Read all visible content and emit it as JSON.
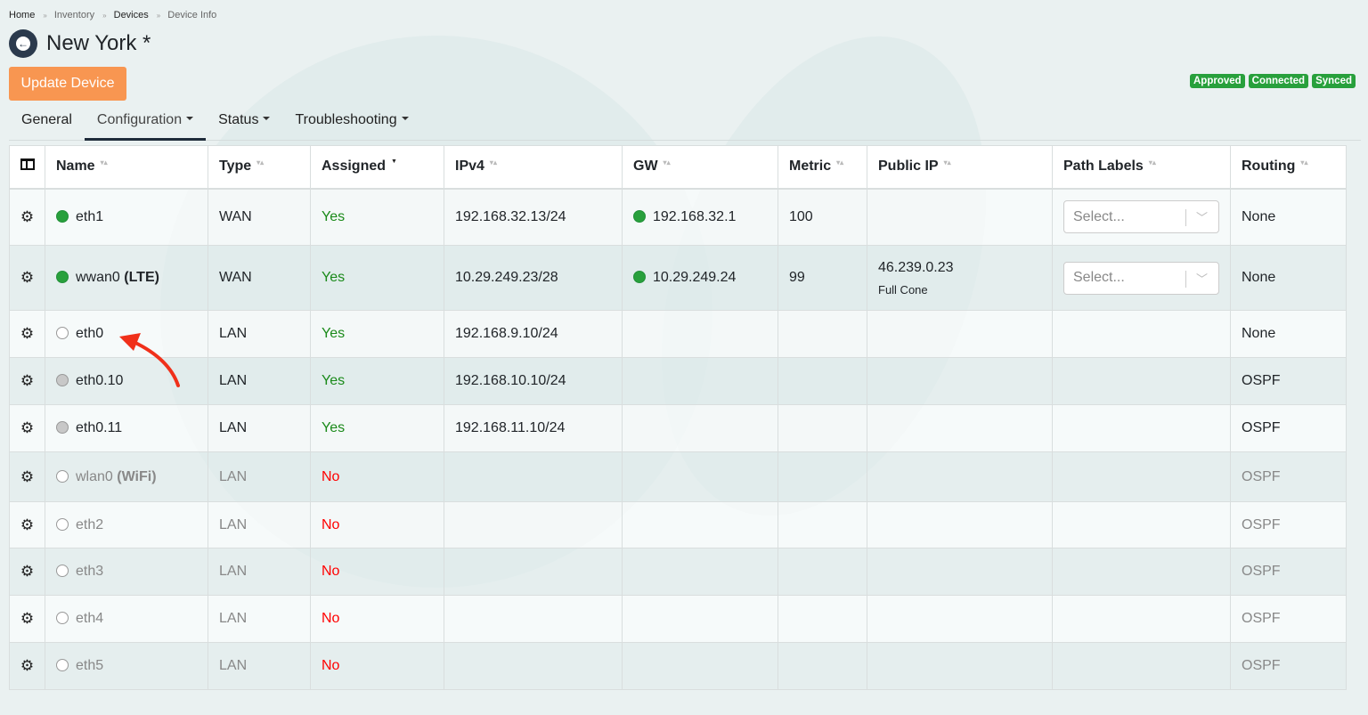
{
  "breadcrumb": [
    "Home",
    "Inventory",
    "Devices",
    "Device Info"
  ],
  "page_title": "New York *",
  "update_button": "Update Device",
  "badges": [
    "Approved",
    "Connected",
    "Synced"
  ],
  "tabs": [
    "General",
    "Configuration",
    "Status",
    "Troubleshooting"
  ],
  "table": {
    "headers": [
      "Name",
      "Type",
      "Assigned",
      "IPv4",
      "GW",
      "Metric",
      "Public IP",
      "Path Labels",
      "Routing"
    ],
    "select_placeholder": "Select...",
    "rows": [
      {
        "status": "green",
        "name": "eth1",
        "suffix": "",
        "type": "WAN",
        "assigned": "Yes",
        "ipv4": "192.168.32.13/24",
        "gw": "192.168.32.1",
        "metric": "100",
        "public_ip": "",
        "nat": "",
        "path_labels": true,
        "routing": "None"
      },
      {
        "status": "green",
        "name": "wwan0",
        "suffix": "(LTE)",
        "type": "WAN",
        "assigned": "Yes",
        "ipv4": "10.29.249.23/28",
        "gw": "10.29.249.24",
        "metric": "99",
        "public_ip": "46.239.0.23",
        "nat": "Full Cone",
        "path_labels": true,
        "routing": "None"
      },
      {
        "status": "empty",
        "name": "eth0",
        "suffix": "",
        "type": "LAN",
        "assigned": "Yes",
        "ipv4": "192.168.9.10/24",
        "gw": "",
        "metric": "",
        "public_ip": "",
        "nat": "",
        "path_labels": false,
        "routing": "None"
      },
      {
        "status": "grey",
        "name": "eth0.10",
        "suffix": "",
        "type": "LAN",
        "assigned": "Yes",
        "ipv4": "192.168.10.10/24",
        "gw": "",
        "metric": "",
        "public_ip": "",
        "nat": "",
        "path_labels": false,
        "routing": "OSPF"
      },
      {
        "status": "grey",
        "name": "eth0.11",
        "suffix": "",
        "type": "LAN",
        "assigned": "Yes",
        "ipv4": "192.168.11.10/24",
        "gw": "",
        "metric": "",
        "public_ip": "",
        "nat": "",
        "path_labels": false,
        "routing": "OSPF"
      },
      {
        "status": "empty",
        "name": "wlan0",
        "suffix": "(WiFi)",
        "type": "LAN",
        "assigned": "No",
        "ipv4": "",
        "gw": "",
        "metric": "",
        "public_ip": "",
        "nat": "",
        "path_labels": false,
        "routing": "OSPF"
      },
      {
        "status": "empty",
        "name": "eth2",
        "suffix": "",
        "type": "LAN",
        "assigned": "No",
        "ipv4": "",
        "gw": "",
        "metric": "",
        "public_ip": "",
        "nat": "",
        "path_labels": false,
        "routing": "OSPF"
      },
      {
        "status": "empty",
        "name": "eth3",
        "suffix": "",
        "type": "LAN",
        "assigned": "No",
        "ipv4": "",
        "gw": "",
        "metric": "",
        "public_ip": "",
        "nat": "",
        "path_labels": false,
        "routing": "OSPF"
      },
      {
        "status": "empty",
        "name": "eth4",
        "suffix": "",
        "type": "LAN",
        "assigned": "No",
        "ipv4": "",
        "gw": "",
        "metric": "",
        "public_ip": "",
        "nat": "",
        "path_labels": false,
        "routing": "OSPF"
      },
      {
        "status": "empty",
        "name": "eth5",
        "suffix": "",
        "type": "LAN",
        "assigned": "No",
        "ipv4": "",
        "gw": "",
        "metric": "",
        "public_ip": "",
        "nat": "",
        "path_labels": false,
        "routing": "OSPF"
      }
    ]
  },
  "colors": {
    "accent": "#f89651",
    "badge": "#28a03c",
    "yes": "#1a8a1a",
    "no": "#ff0000",
    "annotation_arrow": "#f0301a"
  }
}
